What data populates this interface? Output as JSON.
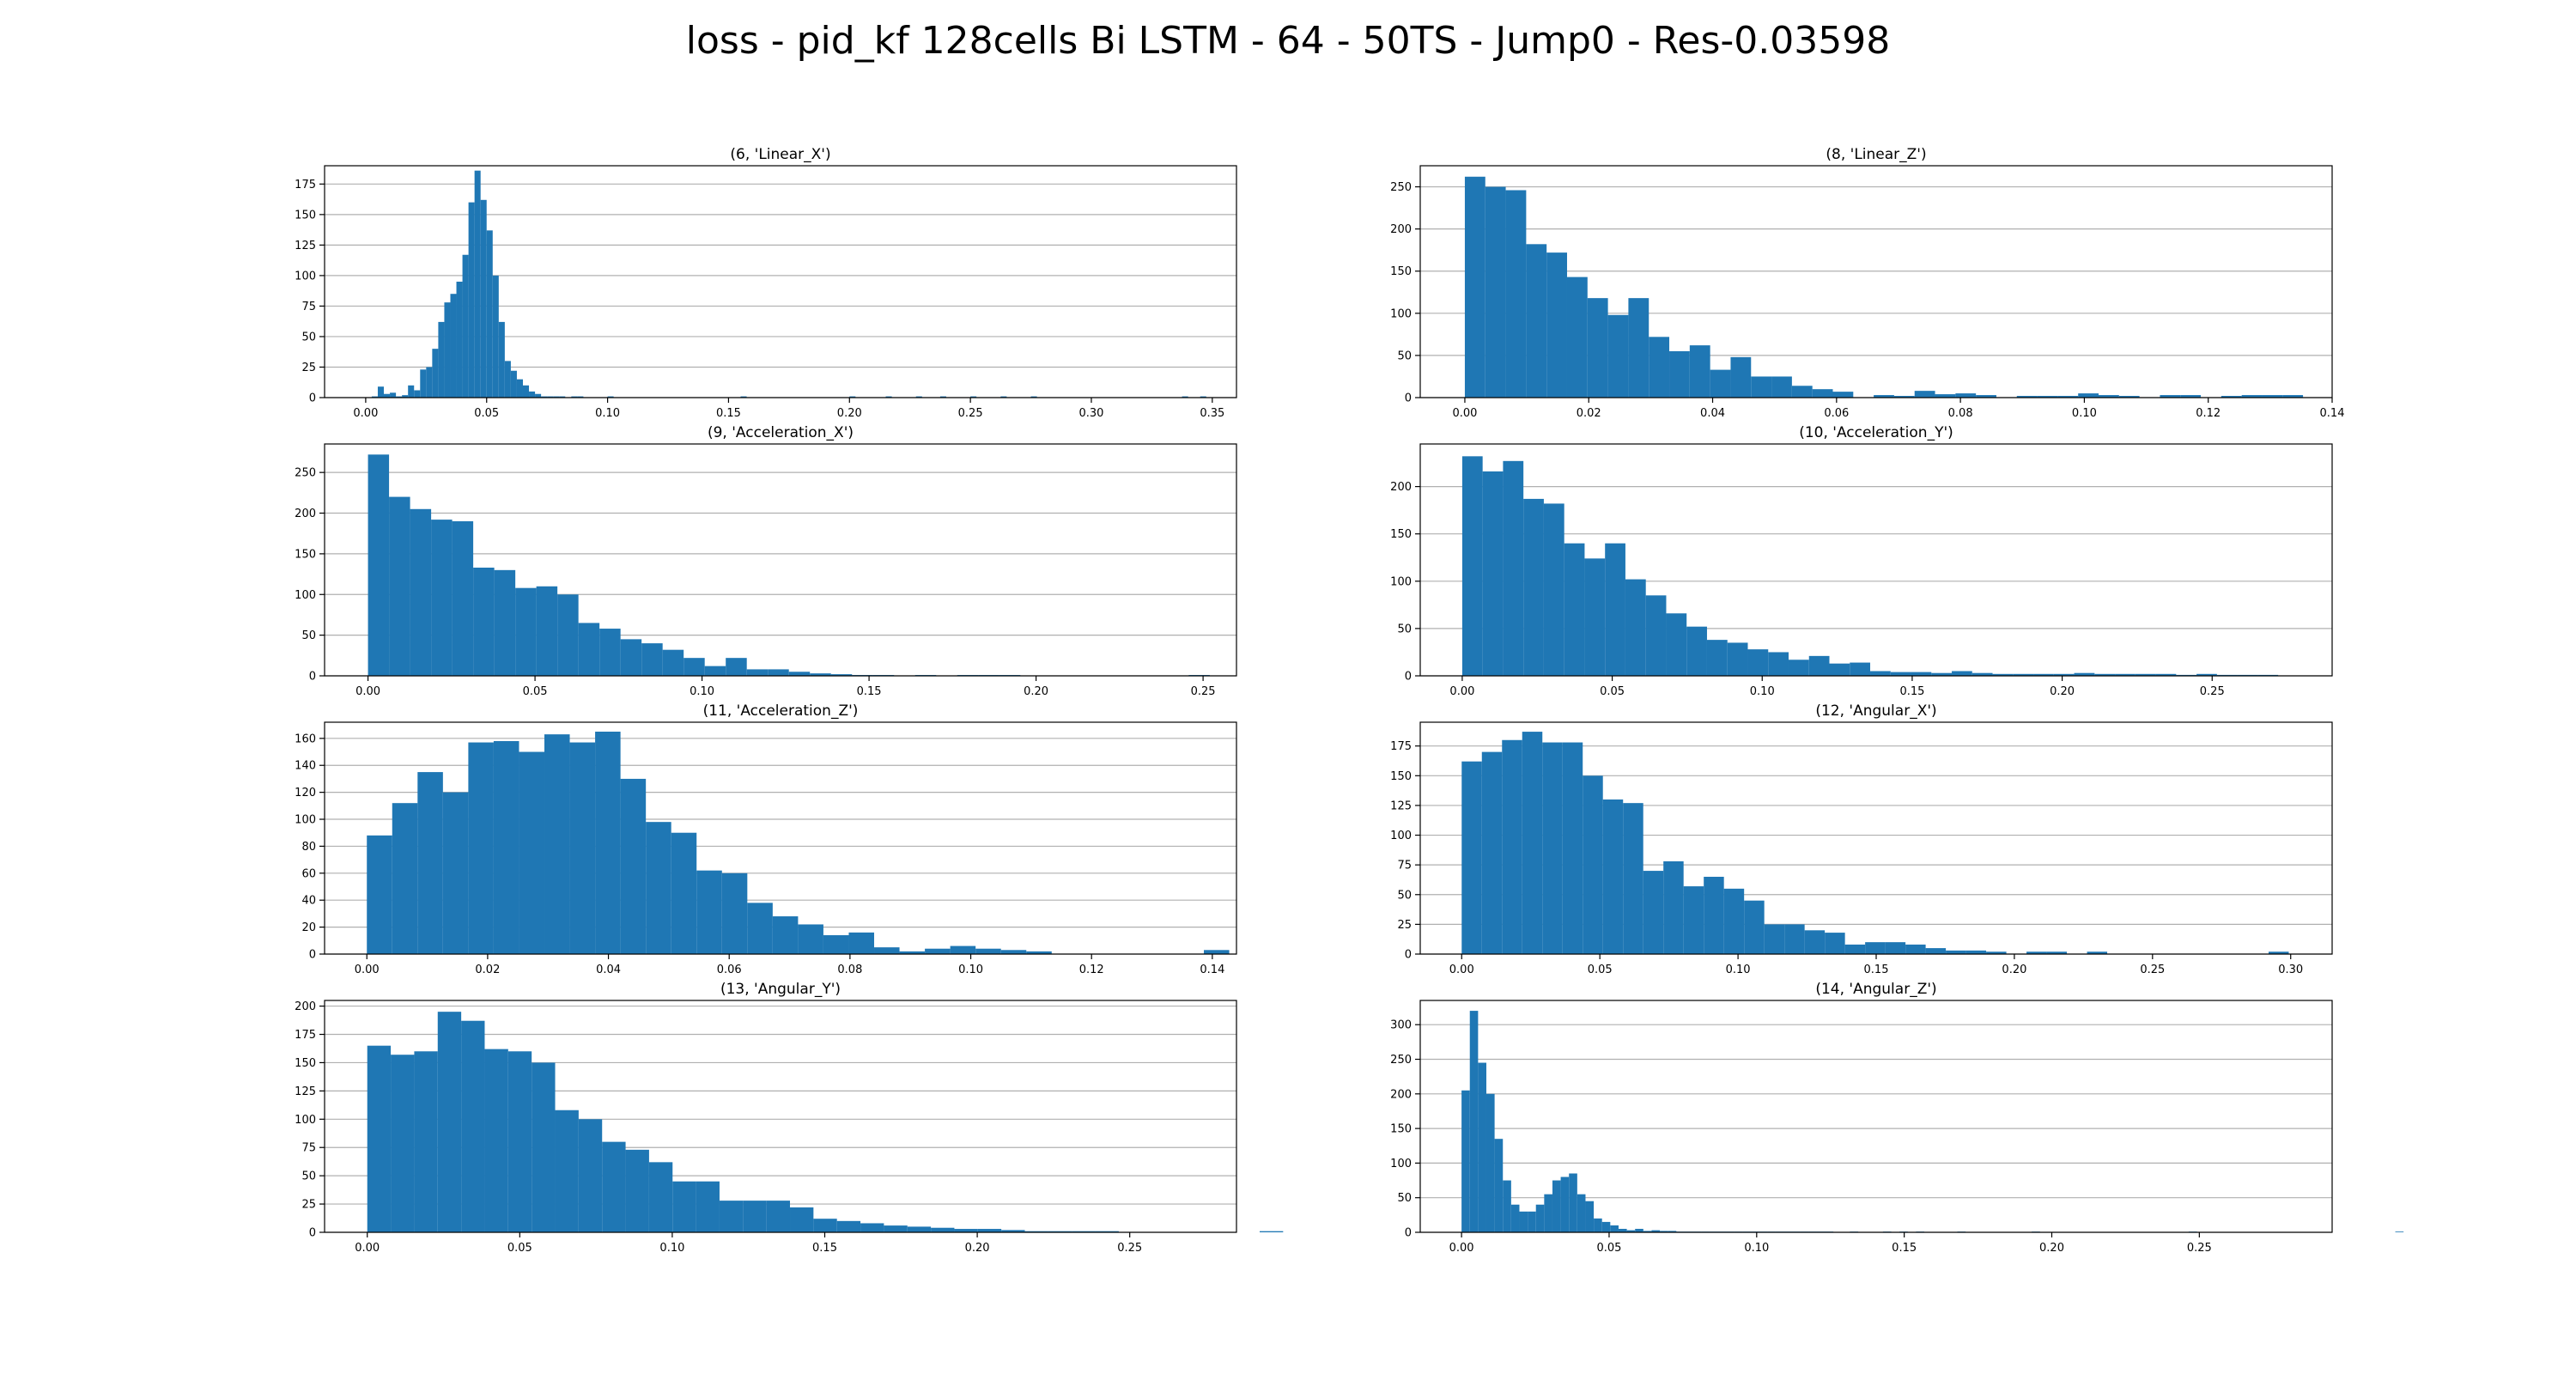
{
  "figure_title": "loss - pid_kf 128cells Bi LSTM  - 64 - 50TS - Jump0 - Res-0.03598",
  "colors": {
    "bar": "#1f77b4",
    "grid": "#b0b0b0",
    "axis": "#000000"
  },
  "chart_data": [
    {
      "type": "bar",
      "title": "(6, 'Linear_X')",
      "xlabel": "",
      "ylabel": "",
      "grid": "y",
      "xlim": [
        -0.017,
        0.36
      ],
      "ylim": [
        0,
        190
      ],
      "xticks": [
        0.0,
        0.05,
        0.1,
        0.15,
        0.2,
        0.25,
        0.3,
        0.35
      ],
      "xticklabels": [
        "0.00",
        "0.05",
        "0.10",
        "0.15",
        "0.20",
        "0.25",
        "0.30",
        "0.35"
      ],
      "yticks": [
        0,
        25,
        50,
        75,
        100,
        125,
        150,
        175
      ],
      "yticklabels": [
        "0",
        "25",
        "50",
        "75",
        "100",
        "125",
        "150",
        "175"
      ],
      "bin_start": 0.0,
      "bin_width": 0.0025,
      "values": [
        0,
        1,
        9,
        3,
        4,
        1,
        2,
        10,
        6,
        23,
        25,
        40,
        62,
        78,
        85,
        95,
        117,
        160,
        186,
        162,
        137,
        100,
        62,
        30,
        22,
        15,
        10,
        5,
        3,
        1,
        1,
        1,
        1,
        0,
        1,
        1,
        0,
        0,
        0,
        0,
        1,
        0,
        0,
        0,
        0,
        0,
        0,
        0,
        0,
        0,
        0,
        0,
        0,
        0,
        0,
        0,
        0,
        0,
        0,
        0,
        0,
        0,
        1,
        0,
        0,
        0,
        0,
        0,
        0,
        0,
        0,
        0,
        0,
        0,
        0,
        0,
        0,
        0,
        0,
        0,
        1,
        0,
        0,
        0,
        0,
        0,
        1,
        0,
        0,
        0,
        0,
        1,
        0,
        0,
        0,
        1,
        0,
        0,
        0,
        0,
        1,
        0,
        0,
        0,
        0,
        1,
        0,
        0,
        0,
        0,
        1,
        0,
        0,
        0,
        0,
        0,
        0,
        0,
        0,
        0,
        0,
        0,
        0,
        0,
        0,
        0,
        0,
        0,
        0,
        0,
        0,
        0,
        0,
        0,
        0,
        1,
        0,
        0,
        1
      ]
    },
    {
      "type": "bar",
      "title": "(8, 'Linear_Z')",
      "xlabel": "",
      "ylabel": "",
      "grid": "y",
      "xlim": [
        -0.0072,
        0.14
      ],
      "ylim": [
        0,
        275
      ],
      "xticks": [
        0.0,
        0.02,
        0.04,
        0.06,
        0.08,
        0.1,
        0.12,
        0.14
      ],
      "xticklabels": [
        "0.00",
        "0.02",
        "0.04",
        "0.06",
        "0.08",
        "0.10",
        "0.12",
        "0.14"
      ],
      "yticks": [
        0,
        50,
        100,
        150,
        200,
        250
      ],
      "yticklabels": [
        "0",
        "50",
        "100",
        "150",
        "200",
        "250"
      ],
      "bin_start": 0.0,
      "bin_width": 0.0033,
      "values": [
        262,
        250,
        246,
        182,
        172,
        143,
        118,
        98,
        118,
        72,
        55,
        62,
        33,
        48,
        25,
        25,
        14,
        10,
        7,
        0,
        3,
        2,
        8,
        4,
        5,
        3,
        0,
        2,
        2,
        2,
        5,
        3,
        2,
        0,
        3,
        3,
        0,
        2,
        3,
        3,
        3
      ]
    },
    {
      "type": "bar",
      "title": "(9, 'Acceleration_X')",
      "xlabel": "",
      "ylabel": "",
      "grid": "y",
      "xlim": [
        -0.013,
        0.26
      ],
      "ylim": [
        0,
        285
      ],
      "xticks": [
        0.0,
        0.05,
        0.1,
        0.15,
        0.2,
        0.25
      ],
      "xticklabels": [
        "0.00",
        "0.05",
        "0.10",
        "0.15",
        "0.20",
        "0.25"
      ],
      "yticks": [
        0,
        50,
        100,
        150,
        200,
        250
      ],
      "yticklabels": [
        "0",
        "50",
        "100",
        "150",
        "200",
        "250"
      ],
      "bin_start": 0.0,
      "bin_width": 0.0063,
      "values": [
        272,
        220,
        205,
        192,
        190,
        133,
        130,
        108,
        110,
        100,
        65,
        58,
        45,
        40,
        32,
        22,
        12,
        22,
        8,
        8,
        5,
        3,
        2,
        1,
        1,
        0,
        1,
        0,
        1,
        1,
        1,
        0,
        0,
        0,
        0,
        0,
        0,
        0,
        0,
        1
      ]
    },
    {
      "type": "bar",
      "title": "(10, 'Acceleration_Y')",
      "xlabel": "",
      "ylabel": "",
      "grid": "y",
      "xlim": [
        -0.014,
        0.29
      ],
      "ylim": [
        0,
        245
      ],
      "xticks": [
        0.0,
        0.05,
        0.1,
        0.15,
        0.2,
        0.25
      ],
      "xticklabels": [
        "0.00",
        "0.05",
        "0.10",
        "0.15",
        "0.20",
        "0.25"
      ],
      "yticks": [
        0,
        50,
        100,
        150,
        200
      ],
      "yticklabels": [
        "0",
        "50",
        "100",
        "150",
        "200"
      ],
      "bin_start": 0.0,
      "bin_width": 0.0068,
      "values": [
        232,
        216,
        227,
        187,
        182,
        140,
        124,
        140,
        102,
        85,
        66,
        52,
        38,
        35,
        28,
        25,
        17,
        21,
        13,
        14,
        5,
        4,
        4,
        3,
        5,
        3,
        2,
        2,
        2,
        2,
        3,
        2,
        2,
        2,
        2,
        1,
        2,
        1,
        1,
        1
      ]
    },
    {
      "type": "bar",
      "title": "(11, 'Acceleration_Z')",
      "xlabel": "",
      "ylabel": "",
      "grid": "y",
      "xlim": [
        -0.007,
        0.144
      ],
      "ylim": [
        0,
        172
      ],
      "xticks": [
        0.0,
        0.02,
        0.04,
        0.06,
        0.08,
        0.1,
        0.12,
        0.14
      ],
      "xticklabels": [
        "0.00",
        "0.02",
        "0.04",
        "0.06",
        "0.08",
        "0.10",
        "0.12",
        "0.14"
      ],
      "yticks": [
        0,
        20,
        40,
        60,
        80,
        100,
        120,
        140,
        160
      ],
      "yticklabels": [
        "0",
        "20",
        "40",
        "60",
        "80",
        "100",
        "120",
        "140",
        "160"
      ],
      "bin_start": 0.0,
      "bin_width": 0.0042,
      "values": [
        88,
        112,
        135,
        120,
        157,
        158,
        150,
        163,
        157,
        165,
        130,
        98,
        90,
        62,
        60,
        38,
        28,
        22,
        14,
        16,
        5,
        2,
        4,
        6,
        4,
        3,
        2,
        0,
        0,
        0,
        0,
        0,
        0,
        3
      ]
    },
    {
      "type": "bar",
      "title": "(12, 'Angular_X')",
      "xlabel": "",
      "ylabel": "",
      "grid": "y",
      "xlim": [
        -0.015,
        0.315
      ],
      "ylim": [
        0,
        195
      ],
      "xticks": [
        0.0,
        0.05,
        0.1,
        0.15,
        0.2,
        0.25,
        0.3
      ],
      "xticklabels": [
        "0.00",
        "0.05",
        "0.10",
        "0.15",
        "0.20",
        "0.25",
        "0.30"
      ],
      "yticks": [
        0,
        25,
        50,
        75,
        100,
        125,
        150,
        175
      ],
      "yticklabels": [
        "0",
        "25",
        "50",
        "75",
        "100",
        "125",
        "150",
        "175"
      ],
      "bin_start": 0.0,
      "bin_width": 0.0073,
      "values": [
        162,
        170,
        180,
        187,
        178,
        178,
        150,
        130,
        127,
        70,
        78,
        57,
        65,
        55,
        45,
        25,
        25,
        20,
        18,
        8,
        10,
        10,
        8,
        5,
        3,
        3,
        2,
        0,
        2,
        2,
        0,
        2,
        0,
        0,
        0,
        0,
        0,
        0,
        0,
        0,
        2
      ]
    },
    {
      "type": "bar",
      "title": "(13, 'Angular_Y')",
      "xlabel": "",
      "ylabel": "",
      "grid": "y",
      "xlim": [
        -0.014,
        0.285
      ],
      "ylim": [
        0,
        205
      ],
      "xticks": [
        0.0,
        0.05,
        0.1,
        0.15,
        0.2,
        0.25
      ],
      "xticklabels": [
        "0.00",
        "0.05",
        "0.10",
        "0.15",
        "0.20",
        "0.25"
      ],
      "yticks": [
        0,
        25,
        50,
        75,
        100,
        125,
        150,
        175,
        200
      ],
      "yticklabels": [
        "0",
        "25",
        "50",
        "75",
        "100",
        "125",
        "150",
        "175",
        "200"
      ],
      "bin_start": 0.0,
      "bin_width": 0.0077,
      "values": [
        165,
        157,
        160,
        195,
        187,
        162,
        160,
        150,
        108,
        100,
        80,
        73,
        62,
        45,
        45,
        28,
        28,
        28,
        22,
        12,
        10,
        8,
        6,
        5,
        4,
        3,
        3,
        2,
        1,
        1,
        1,
        1,
        0,
        0,
        0,
        0,
        0,
        0,
        1
      ]
    },
    {
      "type": "bar",
      "title": "(14, 'Angular_Z')",
      "xlabel": "",
      "ylabel": "",
      "grid": "y",
      "xlim": [
        -0.014,
        0.295
      ],
      "ylim": [
        0,
        335
      ],
      "xticks": [
        0.0,
        0.05,
        0.1,
        0.15,
        0.2,
        0.25
      ],
      "xticklabels": [
        "0.00",
        "0.05",
        "0.10",
        "0.15",
        "0.20",
        "0.25"
      ],
      "yticks": [
        0,
        50,
        100,
        150,
        200,
        250,
        300
      ],
      "yticklabels": [
        "0",
        "50",
        "100",
        "150",
        "200",
        "250",
        "300"
      ],
      "bin_start": 0.0,
      "bin_width": 0.0028,
      "values": [
        205,
        320,
        245,
        200,
        135,
        75,
        40,
        30,
        30,
        40,
        55,
        75,
        80,
        85,
        55,
        45,
        20,
        15,
        10,
        5,
        3,
        5,
        2,
        3,
        2,
        2,
        1,
        1,
        1,
        1,
        1,
        1,
        1,
        1,
        1,
        1,
        1,
        1,
        1,
        1,
        1,
        1,
        1,
        1,
        1,
        0,
        0,
        1,
        0,
        0,
        0,
        1,
        0,
        1,
        0,
        1,
        0,
        0,
        0,
        0,
        1,
        0,
        0,
        0,
        0,
        0,
        0,
        0,
        0,
        1,
        0,
        0,
        0,
        0,
        0,
        0,
        0,
        0,
        0,
        0,
        0,
        0,
        0,
        0,
        0,
        0,
        0,
        0,
        1,
        0,
        0,
        0,
        0,
        0,
        0,
        0,
        0,
        0,
        0,
        0,
        0,
        0,
        0,
        0,
        0,
        0,
        0,
        0,
        0,
        0,
        0,
        0,
        0,
        1,
        0,
        0,
        0,
        0,
        0,
        0,
        0,
        0,
        0,
        0,
        0,
        0,
        0,
        0,
        0,
        0,
        0,
        0,
        0,
        0,
        0,
        0,
        0,
        0,
        0,
        0,
        0,
        0,
        0,
        0,
        0,
        0,
        0,
        0,
        0,
        0,
        0,
        0,
        0,
        0,
        0,
        0,
        0,
        0,
        0,
        0,
        0,
        0,
        0,
        0,
        0,
        0,
        0,
        0,
        0,
        0,
        0,
        0,
        0,
        0,
        0,
        0,
        0,
        0,
        1
      ]
    }
  ]
}
